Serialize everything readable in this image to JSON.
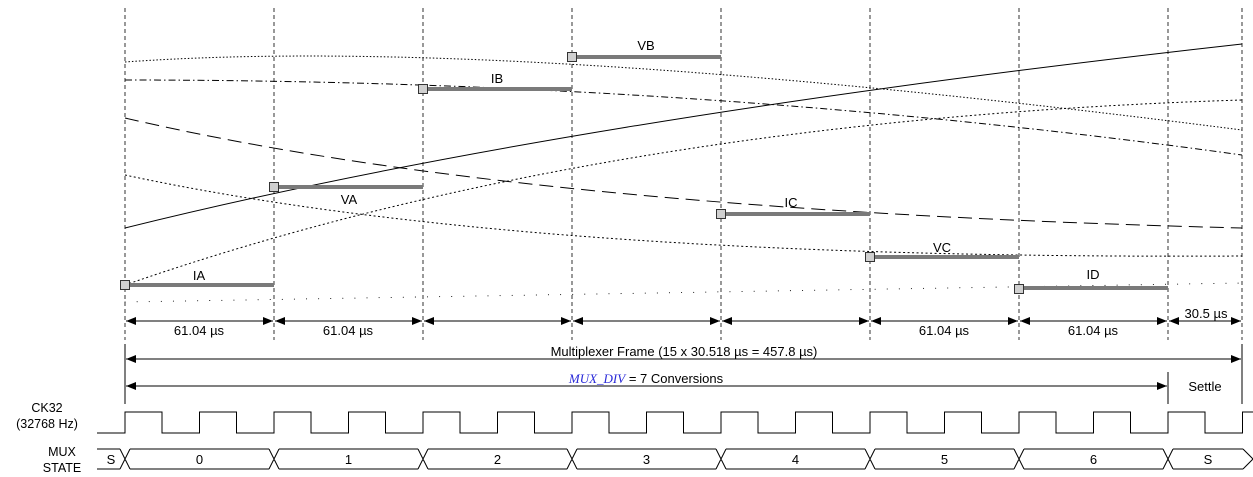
{
  "diagram": {
    "sample_labels": [
      "IA",
      "VA",
      "IB",
      "VB",
      "IC",
      "VC",
      "ID"
    ],
    "interval_labels": [
      "61.04 µs",
      "61.04 µs",
      "",
      "",
      "",
      "61.04 µs",
      "61.04 µs",
      "30.5 µs"
    ],
    "frame_label": "Multiplexer Frame (15 x 30.518 µs = 457.8 µs)",
    "mux_div_name": "MUX_DIV",
    "mux_div_text": " = 7 Conversions",
    "settle_label": "Settle",
    "ck32_label_line1": "CK32",
    "ck32_label_line2": "(32768 Hz)",
    "mux_label_line1": "MUX",
    "mux_label_line2": "STATE",
    "mux_states": [
      "S",
      "0",
      "1",
      "2",
      "3",
      "4",
      "5",
      "6",
      "S"
    ]
  }
}
